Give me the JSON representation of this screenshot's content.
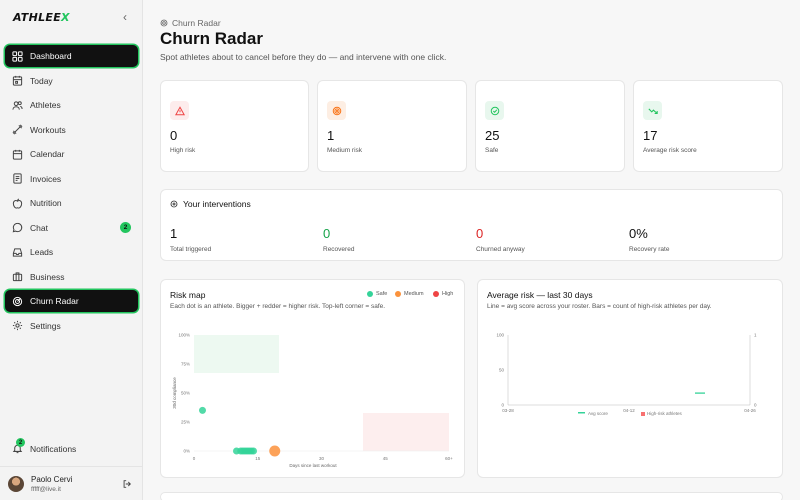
{
  "brand": {
    "name_main": "ATHLEE",
    "name_accent": "X"
  },
  "sidebar": {
    "items": [
      {
        "label": "Dashboard",
        "icon": "grid-icon",
        "active": true
      },
      {
        "label": "Today",
        "icon": "calendar-today-icon"
      },
      {
        "label": "Athletes",
        "icon": "users-icon"
      },
      {
        "label": "Workouts",
        "icon": "dumbbell-icon"
      },
      {
        "label": "Calendar",
        "icon": "calendar-icon"
      },
      {
        "label": "Invoices",
        "icon": "invoice-icon"
      },
      {
        "label": "Nutrition",
        "icon": "apple-icon"
      },
      {
        "label": "Chat",
        "icon": "chat-icon",
        "badge": "2"
      },
      {
        "label": "Leads",
        "icon": "inbox-icon"
      },
      {
        "label": "Business",
        "icon": "briefcase-icon"
      },
      {
        "label": "Churn Radar",
        "icon": "radar-icon",
        "active": true
      },
      {
        "label": "Settings",
        "icon": "gear-icon"
      }
    ],
    "notifications": {
      "label": "Notifications",
      "badge": "2"
    },
    "user": {
      "name": "Paolo Cervi",
      "email": "fffff@live.it"
    }
  },
  "header": {
    "breadcrumb": "Churn Radar",
    "title": "Churn Radar",
    "subtitle": "Spot athletes about to cancel before they do — and intervene with one click."
  },
  "stats": [
    {
      "value": "0",
      "label": "High risk",
      "icon": "alert-triangle-icon",
      "color": "#ef4444",
      "bg": "#fdecec"
    },
    {
      "value": "1",
      "label": "Medium risk",
      "icon": "target-icon",
      "color": "#f97316",
      "bg": "#fdeee3"
    },
    {
      "value": "25",
      "label": "Safe",
      "icon": "check-circle-icon",
      "color": "#22c55e",
      "bg": "#e8f7ee"
    },
    {
      "value": "17",
      "label": "Average risk score",
      "icon": "trending-down-icon",
      "color": "#22c55e",
      "bg": "#e8f7ee"
    }
  ],
  "interventions": {
    "title": "Your interventions",
    "metrics": [
      {
        "value": "1",
        "label": "Total triggered",
        "color": "#111111"
      },
      {
        "value": "0",
        "label": "Recovered",
        "color": "#16a34a"
      },
      {
        "value": "0",
        "label": "Churned anyway",
        "color": "#dc2626"
      },
      {
        "value": "0%",
        "label": "Recovery rate",
        "color": "#111111"
      }
    ]
  },
  "risk_map": {
    "title": "Risk map",
    "subtitle": "Each dot is an athlete. Bigger + redder = higher risk. Top-left corner = safe.",
    "legend": [
      {
        "label": "Safe",
        "color": "#34d399"
      },
      {
        "label": "Medium",
        "color": "#fb923c"
      },
      {
        "label": "High",
        "color": "#ef4444"
      }
    ],
    "x_label": "Days since last workout",
    "y_label": "30d compliance",
    "x_ticks": [
      "0",
      "15",
      "30",
      "45",
      "60+"
    ],
    "y_ticks": [
      "100%",
      "75%",
      "50%",
      "25%",
      "0%"
    ]
  },
  "avg_risk": {
    "title": "Average risk — last 30 days",
    "subtitle": "Line = avg score across your roster. Bars = count of high-risk athletes per day.",
    "y_ticks_left": [
      "100",
      "50",
      "0"
    ],
    "y_ticks_right": [
      "1",
      "0"
    ],
    "x_ticks": [
      "03-28",
      "04-12",
      "04-26"
    ],
    "legend": [
      {
        "label": "Avg score",
        "color": "#34d399"
      },
      {
        "label": "High-risk athletes",
        "color": "#f87171"
      }
    ]
  },
  "chart_data": [
    {
      "type": "scatter",
      "xlabel": "Days since last workout",
      "ylabel": "30d compliance",
      "xlim": [
        0,
        60
      ],
      "ylim": [
        0,
        100
      ],
      "series": [
        {
          "name": "Safe",
          "points": [
            [
              2,
              35
            ],
            [
              10,
              0
            ],
            [
              11,
              0
            ],
            [
              11.5,
              0
            ],
            [
              12,
              0
            ],
            [
              12.5,
              0
            ],
            [
              13,
              0
            ],
            [
              13.5,
              0
            ],
            [
              14,
              0
            ]
          ]
        },
        {
          "name": "Medium",
          "points": [
            [
              19,
              0
            ]
          ]
        },
        {
          "name": "High",
          "points": []
        }
      ]
    },
    {
      "type": "line",
      "xlabel": "",
      "ylabel": "",
      "x": [
        "03-28",
        "04-12",
        "04-26"
      ],
      "ylim": [
        0,
        100
      ],
      "series": [
        {
          "name": "Avg score",
          "values": [
            null,
            null,
            17
          ]
        },
        {
          "name": "High-risk athletes",
          "values": [
            0,
            0,
            0
          ]
        }
      ]
    }
  ]
}
